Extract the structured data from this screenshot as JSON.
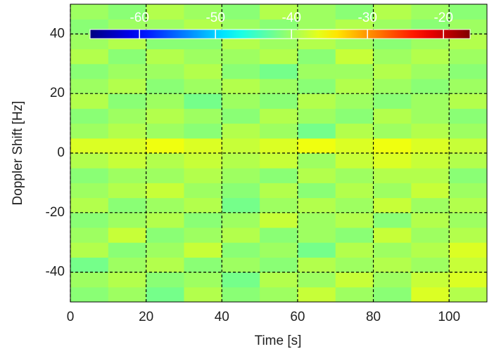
{
  "chart_data": {
    "type": "heatmap",
    "x_label": "Time [s]",
    "y_label": "Doppler Shift [Hz]",
    "xlim": [
      0,
      110
    ],
    "xticks": [
      0,
      20,
      40,
      60,
      80,
      100
    ],
    "ylim": [
      -50,
      50
    ],
    "yticks": [
      -40,
      -20,
      0,
      20,
      40
    ],
    "grid": true,
    "colormap": "jet",
    "clim": [
      -66.5,
      -16.5
    ],
    "cticks": [
      -60,
      -50,
      -40,
      -30,
      -20
    ],
    "x_bins": [
      0,
      10,
      20,
      30,
      40,
      50,
      60,
      70,
      80,
      90,
      100,
      110
    ],
    "y_bins": [
      -50,
      -45,
      -40,
      -35,
      -30,
      -25,
      -20,
      -15,
      -10,
      -5,
      0,
      5,
      10,
      15,
      20,
      25,
      30,
      35,
      40,
      45,
      50
    ],
    "z": [
      [
        -41,
        -40,
        -42,
        -39,
        -41,
        -40,
        -38,
        -40,
        -41,
        -37,
        -39
      ],
      [
        -40,
        -39,
        -41,
        -40,
        -42,
        -39,
        -40,
        -38,
        -40,
        -38,
        -37
      ],
      [
        -42,
        -40,
        -39,
        -41,
        -40,
        -41,
        -39,
        -40,
        -39,
        -40,
        -38
      ],
      [
        -39,
        -41,
        -40,
        -38,
        -41,
        -40,
        -42,
        -39,
        -40,
        -39,
        -37
      ],
      [
        -40,
        -38,
        -41,
        -40,
        -39,
        -41,
        -40,
        -41,
        -38,
        -40,
        -39
      ],
      [
        -41,
        -40,
        -39,
        -41,
        -40,
        -38,
        -40,
        -39,
        -41,
        -39,
        -40
      ],
      [
        -39,
        -41,
        -40,
        -39,
        -42,
        -40,
        -39,
        -40,
        -38,
        -40,
        -39
      ],
      [
        -40,
        -39,
        -38,
        -40,
        -41,
        -39,
        -41,
        -39,
        -40,
        -38,
        -40
      ],
      [
        -41,
        -40,
        -40,
        -39,
        -40,
        -41,
        -39,
        -40,
        -39,
        -39,
        -41
      ],
      [
        -39,
        -38,
        -39,
        -38,
        -39,
        -38,
        -40,
        -38,
        -37,
        -38,
        -39
      ],
      [
        -37,
        -37,
        -36,
        -37,
        -38,
        -37,
        -36,
        -37,
        -36,
        -37,
        -38
      ],
      [
        -40,
        -39,
        -40,
        -41,
        -39,
        -40,
        -42,
        -39,
        -40,
        -39,
        -40
      ],
      [
        -41,
        -40,
        -39,
        -40,
        -41,
        -39,
        -40,
        -41,
        -39,
        -40,
        -41
      ],
      [
        -39,
        -41,
        -40,
        -42,
        -40,
        -41,
        -39,
        -40,
        -41,
        -40,
        -39
      ],
      [
        -40,
        -39,
        -41,
        -40,
        -39,
        -40,
        -41,
        -39,
        -40,
        -41,
        -40
      ],
      [
        -41,
        -40,
        -40,
        -39,
        -41,
        -42,
        -40,
        -40,
        -39,
        -40,
        -41
      ],
      [
        -39,
        -41,
        -39,
        -40,
        -40,
        -39,
        -41,
        -38,
        -40,
        -39,
        -40
      ],
      [
        -40,
        -39,
        -41,
        -41,
        -39,
        -40,
        -39,
        -40,
        -41,
        -40,
        -39
      ],
      [
        -41,
        -40,
        -40,
        -39,
        -40,
        -41,
        -40,
        -39,
        -40,
        -41,
        -40
      ],
      [
        -40,
        -41,
        -39,
        -40,
        -41,
        -39,
        -40,
        -41,
        -39,
        -40,
        -41
      ]
    ]
  }
}
